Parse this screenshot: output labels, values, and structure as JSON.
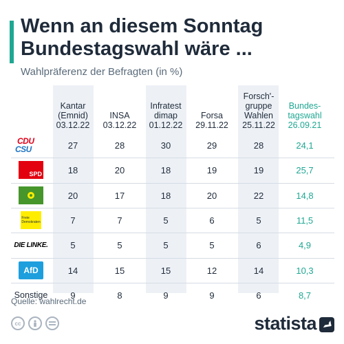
{
  "title": "Wenn an diesem Sonntag Bundestagswahl wäre ...",
  "subtitle": "Wahlpräferenz der Befragten (in %)",
  "source": "Quelle: wahlrecht.de",
  "brand": "statista",
  "colors": {
    "accent": "#1fa792",
    "text": "#1f2b3a",
    "shade": "#edf1f6"
  },
  "icons": [
    "cc-icon",
    "person-icon",
    "equals-icon",
    "statista-logo-icon"
  ],
  "chart_data": {
    "type": "table",
    "title": "Wenn an diesem Sonntag Bundestagswahl wäre ...",
    "subtitle": "Wahlpräferenz der Befragten (in %)",
    "columns": [
      {
        "name": "Kantar (Emnid)",
        "date": "03.12.22"
      },
      {
        "name": "INSA",
        "date": "03.12.22"
      },
      {
        "name": "Infratest dimap",
        "date": "01.12.22"
      },
      {
        "name": "Forsa",
        "date": "29.11.22"
      },
      {
        "name": "Forsch'-gruppe Wahlen",
        "date": "25.11.22"
      },
      {
        "name": "Bundes-tagswahl",
        "date": "26.09.21"
      }
    ],
    "rows": [
      {
        "party": "CDU CSU",
        "values": [
          "27",
          "28",
          "30",
          "29",
          "28",
          "24,1"
        ]
      },
      {
        "party": "SPD",
        "values": [
          "18",
          "20",
          "18",
          "19",
          "19",
          "25,7"
        ]
      },
      {
        "party": "BÜNDNIS 90 DIE GRÜNEN",
        "values": [
          "20",
          "17",
          "18",
          "20",
          "22",
          "14,8"
        ]
      },
      {
        "party": "Freie Demokraten",
        "values": [
          "7",
          "7",
          "5",
          "6",
          "5",
          "11,5"
        ]
      },
      {
        "party": "DIE LINKE.",
        "values": [
          "5",
          "5",
          "5",
          "5",
          "6",
          "4,9"
        ]
      },
      {
        "party": "AfD",
        "values": [
          "14",
          "15",
          "15",
          "12",
          "14",
          "10,3"
        ]
      },
      {
        "party": "Sonstige",
        "values": [
          "9",
          "8",
          "9",
          "9",
          "6",
          "8,7"
        ]
      }
    ]
  }
}
